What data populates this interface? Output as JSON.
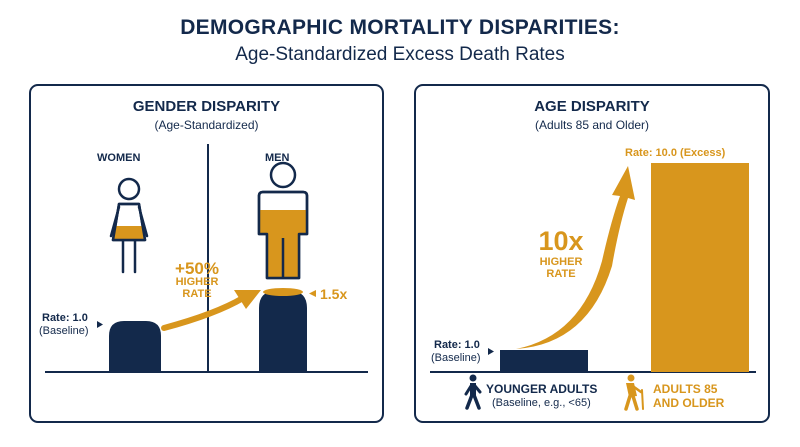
{
  "title": "DEMOGRAPHIC MORTALITY DISPARITIES:",
  "subtitle": "Age-Standardized Excess Death Rates",
  "colors": {
    "navy": "#13294b",
    "gold": "#d8961d"
  },
  "gender_panel": {
    "title": "GENDER DISPARITY",
    "subtitle": "(Age-Standardized)",
    "women_label": "WOMEN",
    "men_label": "MEN",
    "women_rate": "Rate: 1.0",
    "women_baseline": "(Baseline)",
    "increase": "+50%",
    "higher": "HIGHER",
    "rate_word": "RATE",
    "men_rate": "1.5x",
    "icons": [
      "woman-icon",
      "man-icon"
    ]
  },
  "age_panel": {
    "title": "AGE DISPARITY",
    "subtitle": "(Adults 85 and Older)",
    "young_rate": "Rate: 1.0",
    "young_baseline": "(Baseline)",
    "old_rate": "Rate: 10.0 (Excess)",
    "multiplier": "10x",
    "higher": "HIGHER",
    "rate_word": "RATE",
    "young_label": "YOUNGER ADULTS",
    "young_sub": "(Baseline, e.g., <65)",
    "old_label_1": "ADULTS 85",
    "old_label_2": "AND OLDER",
    "icons": [
      "walking-person-icon",
      "elderly-cane-icon"
    ]
  },
  "chart_data": [
    {
      "type": "bar",
      "title": "GENDER DISPARITY",
      "categories": [
        "WOMEN",
        "MEN"
      ],
      "values": [
        1.0,
        1.5
      ]
    },
    {
      "type": "bar",
      "title": "AGE DISPARITY",
      "categories": [
        "YOUNGER ADULTS",
        "ADULTS 85 AND OLDER"
      ],
      "values": [
        1.0,
        10.0
      ]
    }
  ]
}
